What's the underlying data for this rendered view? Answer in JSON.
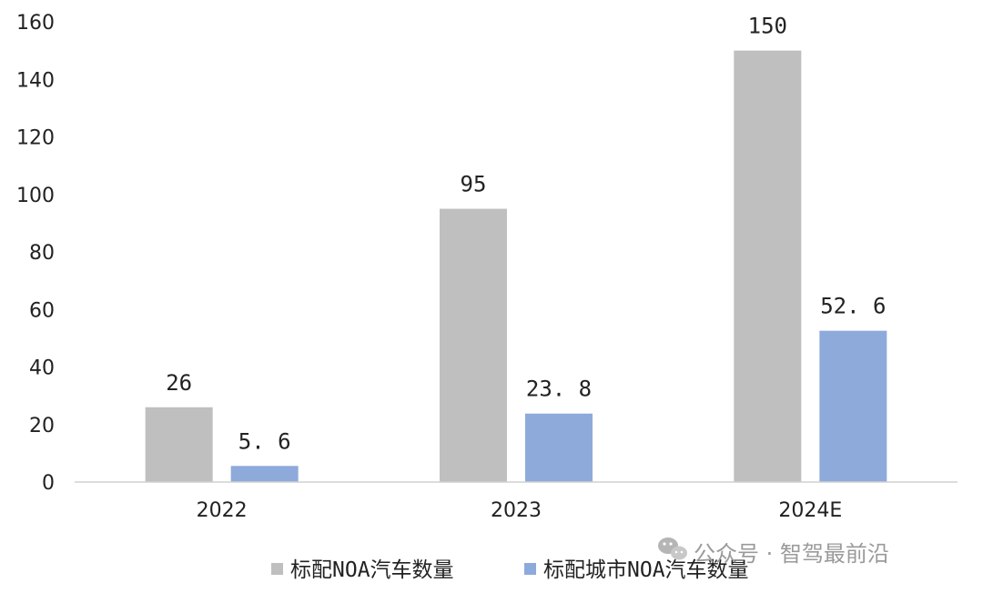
{
  "chart_data": {
    "type": "bar",
    "categories": [
      "2022",
      "2023",
      "2024E"
    ],
    "series": [
      {
        "name": "标配NOA汽车数量",
        "values": [
          26,
          95,
          150
        ],
        "labels": [
          "26",
          "95",
          "150"
        ],
        "color": "#bfbfbf"
      },
      {
        "name": "标配城市NOA汽车数量",
        "values": [
          5.6,
          23.8,
          52.6
        ],
        "labels": [
          "5. 6",
          "23. 8",
          "52. 6"
        ],
        "color": "#8eaadb"
      }
    ],
    "ylim": [
      0,
      160
    ],
    "yticks": [
      0,
      20,
      40,
      60,
      80,
      100,
      120,
      140,
      160
    ],
    "grid": false,
    "legend_position": "bottom",
    "title": "",
    "xlabel": "",
    "ylabel": ""
  },
  "watermark": {
    "text": "公众号 · 智驾最前沿",
    "icon": "wechat-icon"
  }
}
